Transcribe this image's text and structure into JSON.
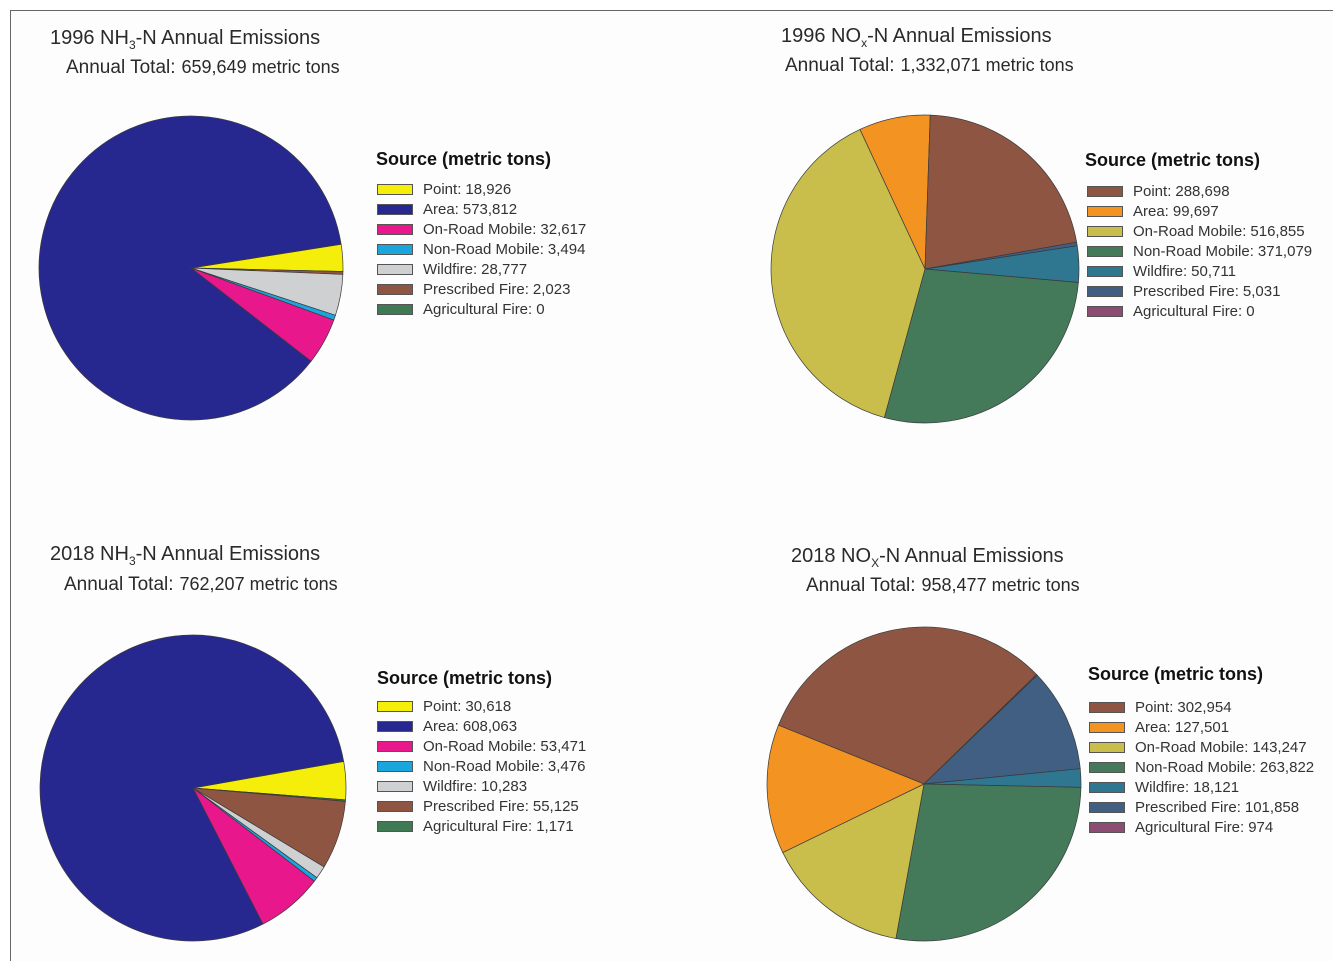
{
  "chart_data": [
    {
      "type": "pie",
      "title_prefix": "1996 NH",
      "title_sub": "3",
      "title_suffix": "-N Annual Emissions",
      "total_label": "Annual Total:",
      "total_value": "659,649 metric tons",
      "legend_title": "Source (metric tons)",
      "slices": [
        {
          "label": "Point:",
          "value_text": "18,926",
          "value": 18926,
          "color": "#f5ee0a"
        },
        {
          "label": "Area:",
          "value_text": "573,812",
          "value": 573812,
          "color": "#27288f"
        },
        {
          "label": "On-Road Mobile:",
          "value_text": "32,617",
          "value": 32617,
          "color": "#e8178c"
        },
        {
          "label": "Non-Road Mobile:",
          "value_text": "3,494",
          "value": 3494,
          "color": "#1aa5dc"
        },
        {
          "label": "Wildfire:",
          "value_text": "28,777",
          "value": 28777,
          "color": "#cfd0d2"
        },
        {
          "label": "Prescribed Fire:",
          "value_text": "2,023",
          "value": 2023,
          "color": "#8e5542"
        },
        {
          "label": "Agricultural Fire:",
          "value_text": "0",
          "value": 0,
          "color": "#3f7a55"
        }
      ]
    },
    {
      "type": "pie",
      "title_prefix": "1996 NO",
      "title_sub": "x",
      "title_suffix": "-N Annual Emissions",
      "total_label": "Annual Total:",
      "total_value": "1,332,071 metric tons",
      "legend_title": "Source (metric tons)",
      "slices": [
        {
          "label": "Point:",
          "value_text": "288,698",
          "value": 288698,
          "color": "#8e5542"
        },
        {
          "label": "Area:",
          "value_text": "99,697",
          "value": 99697,
          "color": "#f39321"
        },
        {
          "label": "On-Road Mobile:",
          "value_text": "516,855",
          "value": 516855,
          "color": "#c9bd4b"
        },
        {
          "label": "Non-Road Mobile:",
          "value_text": "371,079",
          "value": 371079,
          "color": "#44795a"
        },
        {
          "label": "Wildfire:",
          "value_text": "50,711",
          "value": 50711,
          "color": "#2f7691"
        },
        {
          "label": "Prescribed Fire:",
          "value_text": "5,031",
          "value": 5031,
          "color": "#415f82"
        },
        {
          "label": "Agricultural Fire:",
          "value_text": "0",
          "value": 0,
          "color": "#8c4d72"
        }
      ]
    },
    {
      "type": "pie",
      "title_prefix": "2018 NH",
      "title_sub": "3",
      "title_suffix": "-N Annual Emissions",
      "total_label": "Annual Total:",
      "total_value": "762,207 metric tons",
      "legend_title": "Source (metric tons)",
      "slices": [
        {
          "label": "Point:",
          "value_text": "30,618",
          "value": 30618,
          "color": "#f5ee0a"
        },
        {
          "label": "Area:",
          "value_text": "608,063",
          "value": 608063,
          "color": "#27288f"
        },
        {
          "label": "On-Road Mobile:",
          "value_text": "53,471",
          "value": 53471,
          "color": "#e8178c"
        },
        {
          "label": "Non-Road Mobile:",
          "value_text": "3,476",
          "value": 3476,
          "color": "#1aa5dc"
        },
        {
          "label": "Wildfire:",
          "value_text": "10,283",
          "value": 10283,
          "color": "#cfd0d2"
        },
        {
          "label": "Prescribed Fire:",
          "value_text": "55,125",
          "value": 55125,
          "color": "#8e5542"
        },
        {
          "label": "Agricultural Fire:",
          "value_text": "1,171",
          "value": 1171,
          "color": "#3f7a55"
        }
      ]
    },
    {
      "type": "pie",
      "title_prefix": "2018 NO",
      "title_sub": "X",
      "title_suffix": "-N Annual Emissions",
      "total_label": "Annual Total:",
      "total_value": "958,477 metric tons",
      "legend_title": "Source (metric tons)",
      "slices": [
        {
          "label": "Point:",
          "value_text": "302,954",
          "value": 302954,
          "color": "#8e5542"
        },
        {
          "label": "Area:",
          "value_text": "127,501",
          "value": 127501,
          "color": "#f39321"
        },
        {
          "label": "On-Road Mobile:",
          "value_text": "143,247",
          "value": 143247,
          "color": "#c9bd4b"
        },
        {
          "label": "Non-Road Mobile:",
          "value_text": "263,822",
          "value": 263822,
          "color": "#44795a"
        },
        {
          "label": "Wildfire:",
          "value_text": "18,121",
          "value": 18121,
          "color": "#2f7691"
        },
        {
          "label": "Prescribed Fire:",
          "value_text": "101,858",
          "value": 101858,
          "color": "#415f82"
        },
        {
          "label": "Agricultural Fire:",
          "value_text": "974",
          "value": 974,
          "color": "#8c4d72"
        }
      ]
    }
  ]
}
